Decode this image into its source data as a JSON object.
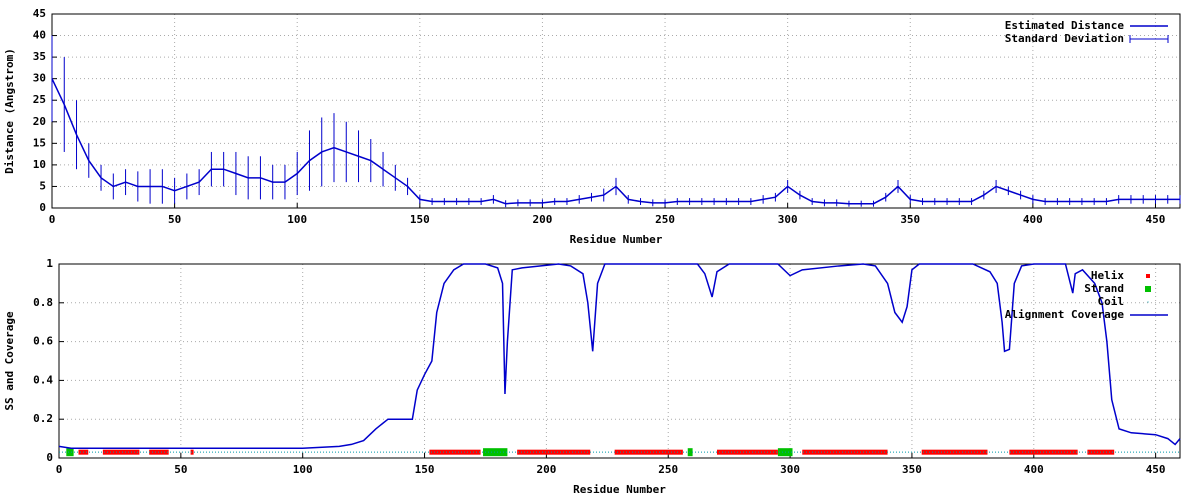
{
  "chart_data": [
    {
      "type": "errorline",
      "ylabel": "Distance (Angstrom)",
      "xlabel": "Residue Number",
      "xlim": [
        0,
        460
      ],
      "xticks": [
        0,
        50,
        100,
        150,
        200,
        250,
        300,
        350,
        400,
        450
      ],
      "ylim": [
        0,
        45
      ],
      "yticks": [
        0,
        5,
        10,
        15,
        20,
        25,
        30,
        35,
        40,
        45
      ],
      "grid": true,
      "legend": "top-right",
      "x": [
        0,
        5,
        10,
        15,
        20,
        25,
        30,
        35,
        40,
        45,
        50,
        55,
        60,
        65,
        70,
        75,
        80,
        85,
        90,
        95,
        100,
        105,
        110,
        115,
        120,
        125,
        130,
        135,
        140,
        145,
        150,
        155,
        160,
        165,
        170,
        175,
        180,
        185,
        190,
        195,
        200,
        205,
        210,
        215,
        220,
        225,
        230,
        235,
        240,
        245,
        250,
        255,
        260,
        265,
        270,
        275,
        280,
        285,
        290,
        295,
        300,
        305,
        310,
        315,
        320,
        325,
        330,
        335,
        340,
        345,
        350,
        355,
        360,
        365,
        370,
        375,
        380,
        385,
        390,
        395,
        400,
        405,
        410,
        415,
        420,
        425,
        430,
        435,
        440,
        445,
        450,
        455,
        460
      ],
      "series": [
        {
          "name": "Estimated Distance",
          "color": "#0000cc",
          "values": [
            30,
            24,
            17,
            11,
            7,
            5,
            6,
            5,
            5,
            5,
            4,
            5,
            6,
            9,
            9,
            8,
            7,
            7,
            6,
            6,
            8,
            11,
            13,
            14,
            13,
            12,
            11,
            9,
            7,
            5,
            2,
            1.5,
            1.5,
            1.5,
            1.5,
            1.5,
            2,
            1,
            1.2,
            1.2,
            1.2,
            1.5,
            1.5,
            2,
            2.5,
            3,
            5,
            2,
            1.5,
            1.2,
            1.2,
            1.5,
            1.5,
            1.5,
            1.5,
            1.5,
            1.5,
            1.5,
            2,
            2.5,
            5,
            3,
            1.5,
            1.2,
            1.2,
            1,
            1,
            1,
            2.5,
            5,
            2,
            1.5,
            1.5,
            1.5,
            1.5,
            1.5,
            3,
            5,
            4,
            3,
            2,
            1.5,
            1.5,
            1.5,
            1.5,
            1.5,
            1.5,
            2,
            2,
            2,
            2,
            2,
            2
          ]
        },
        {
          "name": "Standard Deviation",
          "color": "#0000cc",
          "values": [
            10,
            11,
            8,
            4,
            3,
            3,
            3,
            3.5,
            4,
            4,
            3,
            3,
            3,
            4,
            4,
            5,
            5,
            5,
            4,
            4,
            5,
            7,
            8,
            8,
            7,
            6,
            5,
            4,
            3,
            2,
            1,
            0.8,
            0.8,
            0.8,
            0.8,
            0.8,
            1,
            0.8,
            0.8,
            0.8,
            0.8,
            0.8,
            0.8,
            1,
            1,
            1.5,
            2,
            1,
            0.8,
            0.8,
            0.8,
            0.8,
            0.8,
            0.8,
            0.8,
            0.8,
            0.8,
            0.8,
            1,
            1,
            1.5,
            1,
            0.8,
            0.8,
            0.8,
            0.7,
            0.7,
            0.7,
            1,
            1.5,
            1,
            0.8,
            0.8,
            0.8,
            0.8,
            0.8,
            1,
            1.5,
            1,
            1,
            1,
            0.8,
            0.8,
            0.8,
            0.8,
            0.8,
            0.8,
            1,
            1,
            1,
            1,
            1,
            1
          ]
        }
      ]
    },
    {
      "type": "ss",
      "ylabel": "SS and Coverage",
      "xlabel": "Residue Number",
      "xlim": [
        0,
        460
      ],
      "xticks": [
        0,
        50,
        100,
        150,
        200,
        250,
        300,
        350,
        400,
        450
      ],
      "ylim": [
        0,
        1
      ],
      "yticks": [
        0,
        0.2,
        0.4,
        0.6,
        0.8,
        1
      ],
      "grid": true,
      "legend": "top-right",
      "segments": [
        {
          "name": "Helix",
          "color": "#ff0000",
          "y": 0.03,
          "ranges": [
            [
              8,
              12
            ],
            [
              18,
              33
            ],
            [
              37,
              45
            ],
            [
              54,
              55
            ],
            [
              152,
              173
            ],
            [
              188,
              218
            ],
            [
              228,
              256
            ],
            [
              270,
              295
            ],
            [
              305,
              340
            ],
            [
              354,
              381
            ],
            [
              390,
              418
            ],
            [
              422,
              433
            ]
          ]
        },
        {
          "name": "Strand",
          "color": "#00c000",
          "y": 0.03,
          "ranges": [
            [
              3,
              6
            ],
            [
              174,
              184
            ],
            [
              258,
              260
            ],
            [
              295,
              301
            ]
          ]
        },
        {
          "name": "Coil",
          "color": "#0099aa",
          "y": 0.03,
          "ranges": [
            [
              0,
              460
            ]
          ]
        }
      ],
      "x": [
        0,
        5,
        50,
        100,
        115,
        120,
        125,
        130,
        135,
        140,
        145,
        147,
        150,
        153,
        155,
        158,
        162,
        166,
        175,
        180,
        182,
        183,
        184,
        186,
        190,
        205,
        210,
        215,
        217,
        219,
        221,
        224,
        262,
        265,
        268,
        270,
        275,
        295,
        300,
        305,
        320,
        330,
        335,
        340,
        343,
        346,
        348,
        350,
        353,
        375,
        382,
        385,
        387,
        388,
        390,
        392,
        395,
        400,
        413,
        415,
        416,
        417,
        420,
        425,
        428,
        430,
        432,
        435,
        440,
        450,
        455,
        458,
        460
      ],
      "series": [
        {
          "name": "Alignment Coverage",
          "color": "#0000cc",
          "values": [
            0.06,
            0.05,
            0.05,
            0.05,
            0.06,
            0.07,
            0.09,
            0.15,
            0.2,
            0.2,
            0.2,
            0.35,
            0.43,
            0.5,
            0.75,
            0.9,
            0.97,
            1,
            1,
            0.98,
            0.9,
            0.33,
            0.6,
            0.97,
            0.98,
            1,
            0.99,
            0.95,
            0.8,
            0.55,
            0.9,
            1,
            1,
            0.95,
            0.83,
            0.96,
            1,
            1,
            0.94,
            0.97,
            0.99,
            1,
            0.99,
            0.9,
            0.75,
            0.7,
            0.78,
            0.97,
            1,
            1,
            0.96,
            0.9,
            0.7,
            0.55,
            0.56,
            0.9,
            0.99,
            1,
            1,
            0.9,
            0.85,
            0.95,
            0.97,
            0.9,
            0.8,
            0.6,
            0.3,
            0.15,
            0.13,
            0.12,
            0.1,
            0.07,
            0.1
          ]
        }
      ]
    }
  ]
}
